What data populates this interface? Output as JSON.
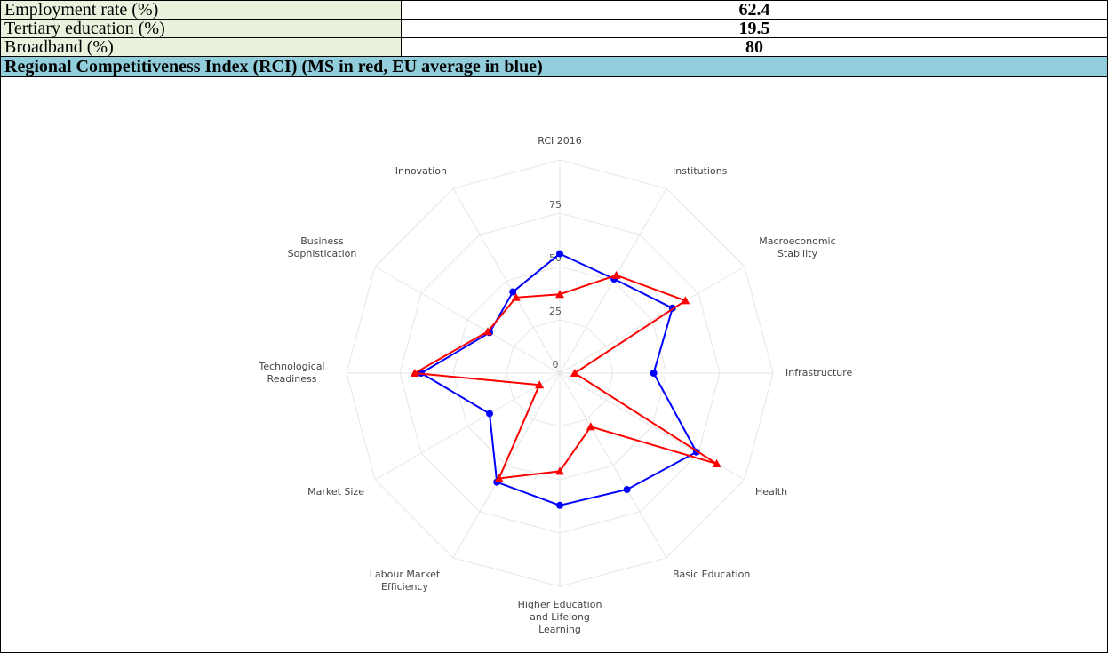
{
  "table": {
    "rows": [
      [
        "Employment rate (%)",
        "62.4"
      ],
      [
        "Tertiary education (%)",
        "19.5"
      ],
      [
        "Broadband (%)",
        "80"
      ]
    ]
  },
  "section_header": "Regional Competitiveness Index (RCI) (MS in red, EU average in blue)",
  "chart_data": {
    "type": "radar",
    "categories": [
      "RCI 2016",
      "Institutions",
      "Macroeconomic Stability",
      "Infrastructure",
      "Health",
      "Basic Education",
      "Higher Education and Lifelong Learning",
      "Labour Market Efficiency",
      "Market Size",
      "Technological Readiness",
      "Business Sophistication",
      "Innovation"
    ],
    "series": [
      {
        "name": "EU average",
        "color": "#0000ff",
        "marker": "circle",
        "values": [
          56,
          51,
          61,
          44,
          74,
          63,
          62,
          59,
          38,
          65,
          38,
          44
        ]
      },
      {
        "name": "MS",
        "color": "#ff0000",
        "marker": "triangle",
        "values": [
          37,
          53,
          68,
          7,
          85,
          29,
          46,
          57,
          11,
          68,
          39,
          41
        ]
      }
    ],
    "ylim": [
      0,
      100
    ],
    "yticks": [
      0,
      25,
      50,
      75
    ],
    "grid": true
  }
}
